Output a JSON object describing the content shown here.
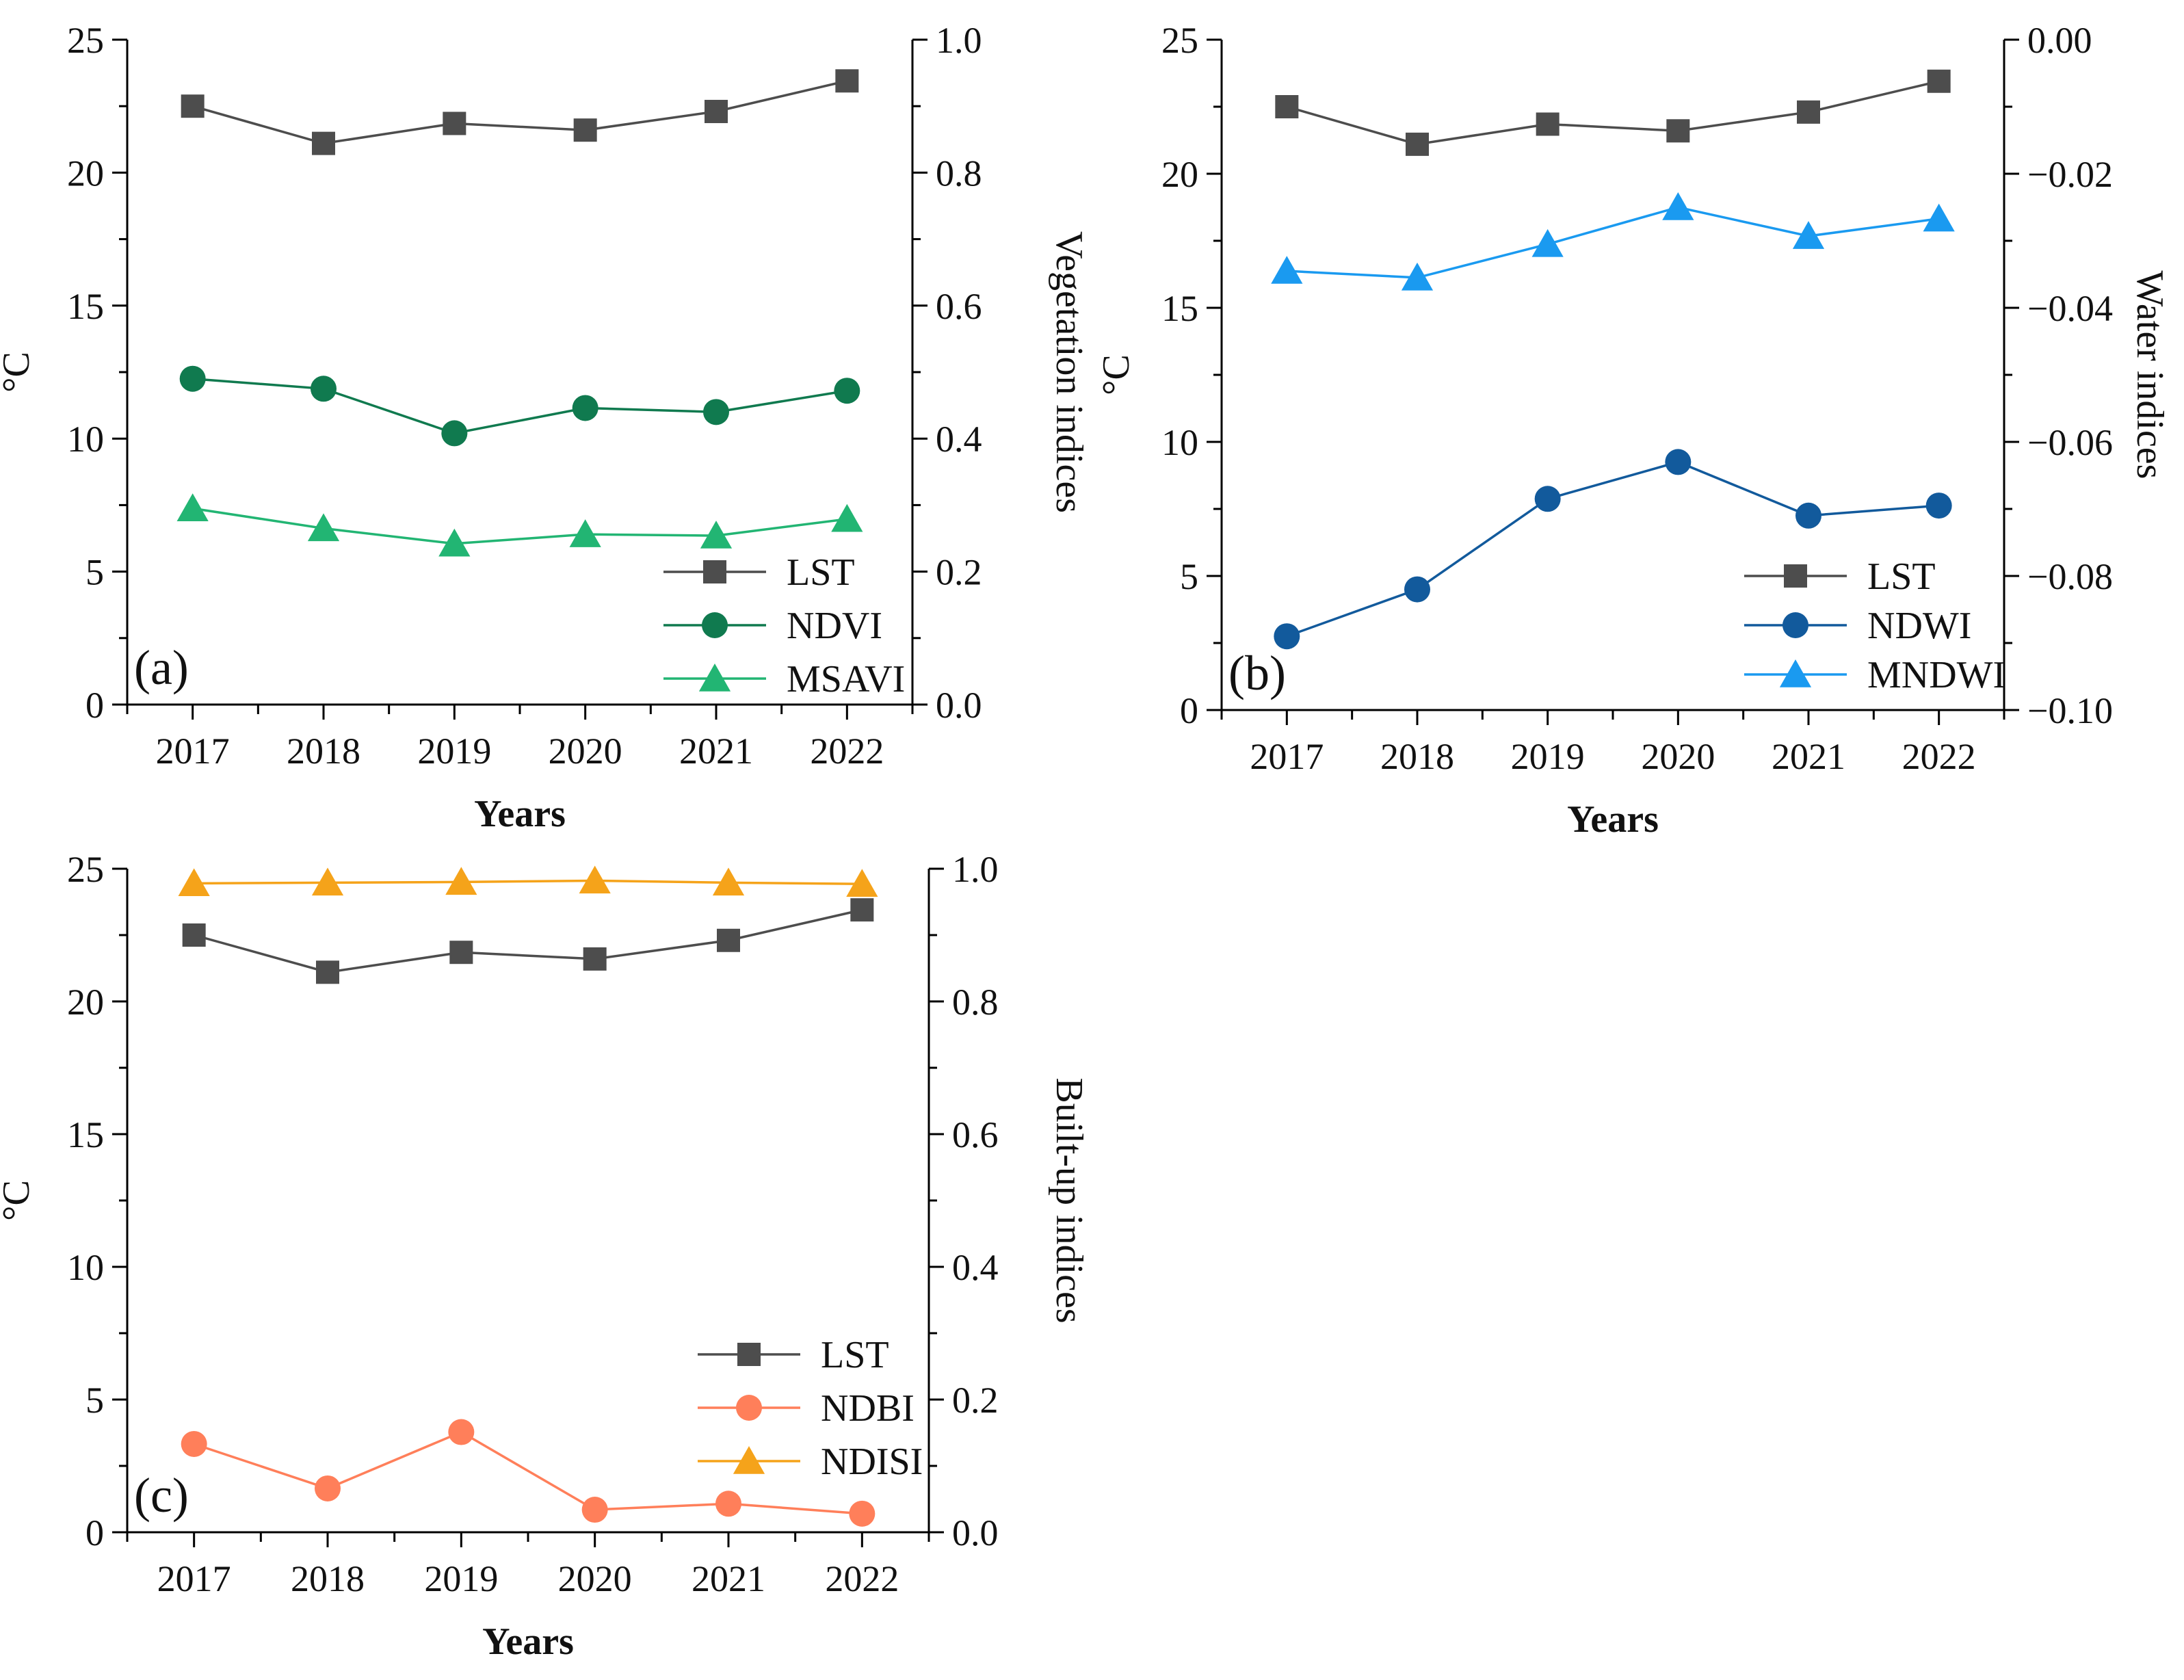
{
  "chart_data": [
    {
      "type": "line",
      "panel_label": "(a)",
      "categories": [
        "2017",
        "2018",
        "2019",
        "2020",
        "2021",
        "2022"
      ],
      "xlabel": "Years",
      "ylabel_left": "°C",
      "ylabel_right": "Vegetation indices",
      "ylim_left": [
        0,
        25
      ],
      "ylim_right": [
        0.0,
        1.0
      ],
      "yticks_left": [
        "0",
        "5",
        "10",
        "15",
        "20",
        "25"
      ],
      "yticks_right": [
        "0.0",
        "0.2",
        "0.4",
        "0.6",
        "0.8",
        "1.0"
      ],
      "legend_position": "bottom-right",
      "series": [
        {
          "name": "LST",
          "axis": "left",
          "marker": "square",
          "color": "#4d4d4d",
          "values": [
            22.5,
            21.1,
            21.85,
            21.6,
            22.3,
            23.45
          ]
        },
        {
          "name": "NDVI",
          "axis": "right",
          "marker": "circle",
          "color": "#107a4f",
          "values": [
            0.49,
            0.475,
            0.408,
            0.446,
            0.44,
            0.472
          ]
        },
        {
          "name": "MSAVI",
          "axis": "right",
          "marker": "triangle",
          "color": "#22b573",
          "values": [
            0.295,
            0.265,
            0.242,
            0.256,
            0.254,
            0.279
          ]
        }
      ]
    },
    {
      "type": "line",
      "panel_label": "(b)",
      "categories": [
        "2017",
        "2018",
        "2019",
        "2020",
        "2021",
        "2022"
      ],
      "xlabel": "Years",
      "ylabel_left": "°C",
      "ylabel_right": "Water indices",
      "ylim_left": [
        0,
        25
      ],
      "ylim_right": [
        -0.1,
        0.0
      ],
      "yticks_left": [
        "0",
        "5",
        "10",
        "15",
        "20",
        "25"
      ],
      "yticks_right": [
        "−0.10",
        "−0.08",
        "−0.06",
        "−0.04",
        "−0.02",
        "0.00"
      ],
      "legend_position": "bottom-right",
      "series": [
        {
          "name": "LST",
          "axis": "left",
          "marker": "square",
          "color": "#4d4d4d",
          "values": [
            22.5,
            21.1,
            21.85,
            21.6,
            22.3,
            23.45
          ]
        },
        {
          "name": "NDWI",
          "axis": "right",
          "marker": "circle",
          "color": "#125a9c",
          "values": [
            -0.089,
            -0.082,
            -0.0685,
            -0.063,
            -0.071,
            -0.0695
          ]
        },
        {
          "name": "MNDWI",
          "axis": "right",
          "marker": "triangle",
          "color": "#1a9af0",
          "values": [
            -0.0345,
            -0.0355,
            -0.0305,
            -0.025,
            -0.0293,
            -0.0267
          ]
        }
      ]
    },
    {
      "type": "line",
      "panel_label": "(c)",
      "categories": [
        "2017",
        "2018",
        "2019",
        "2020",
        "2021",
        "2022"
      ],
      "xlabel": "Years",
      "ylabel_left": "°C",
      "ylabel_right": "Built-up indices",
      "ylim_left": [
        0,
        25
      ],
      "ylim_right": [
        0.0,
        1.0
      ],
      "yticks_left": [
        "0",
        "5",
        "10",
        "15",
        "20",
        "25"
      ],
      "yticks_right": [
        "0.0",
        "0.2",
        "0.4",
        "0.6",
        "0.8",
        "1.0"
      ],
      "legend_position": "bottom-right",
      "series": [
        {
          "name": "LST",
          "axis": "left",
          "marker": "square",
          "color": "#4d4d4d",
          "values": [
            22.5,
            21.1,
            21.85,
            21.6,
            22.3,
            23.45
          ]
        },
        {
          "name": "NDBI",
          "axis": "right",
          "marker": "circle",
          "color": "#ff7f5a",
          "values": [
            0.133,
            0.066,
            0.151,
            0.034,
            0.043,
            0.028
          ]
        },
        {
          "name": "NDISI",
          "axis": "right",
          "marker": "triangle",
          "color": "#f5a31a",
          "values": [
            0.978,
            0.979,
            0.98,
            0.982,
            0.979,
            0.977
          ]
        }
      ]
    }
  ]
}
